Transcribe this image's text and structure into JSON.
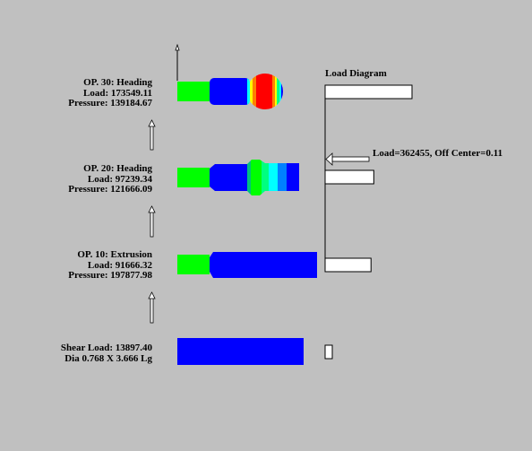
{
  "load_diagram": {
    "title": "Load Diagram",
    "resultant_label": "Load=362455, Off Center=0.11"
  },
  "operations": [
    {
      "name": "OP. 30: Heading",
      "load_text": "Load: 173549.11",
      "pressure_text": "Pressure: 139184.67",
      "load": 173549.11
    },
    {
      "name": "OP. 20: Heading",
      "load_text": "Load: 97239.34",
      "pressure_text": "Pressure: 121666.09",
      "load": 97239.34
    },
    {
      "name": "OP. 10: Extrusion",
      "load_text": "Load: 91666.32",
      "pressure_text": "Pressure: 197877.98",
      "load": 91666.32
    }
  ],
  "shear": {
    "load_text": "Shear Load: 13897.40",
    "dims_text": "Dia 0.768 X 3.666 Lg",
    "load": 13897.4
  },
  "colors": {
    "background": "#c0c0c0",
    "blue": "#0000ff",
    "green": "#00ff00",
    "red": "#ff0000",
    "yellow": "#ffff00",
    "cyan": "#00ffff"
  }
}
